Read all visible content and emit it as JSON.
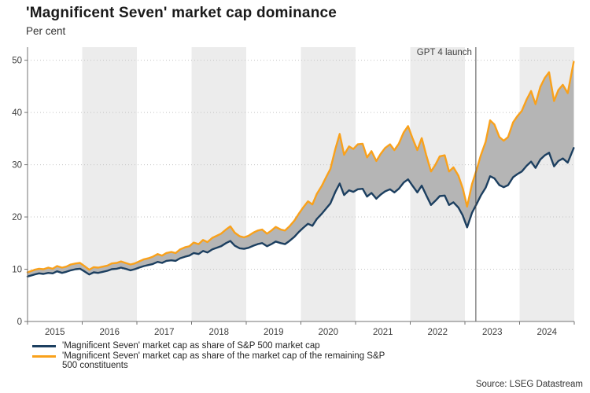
{
  "title": "'Magnificent Seven' market cap dominance",
  "subtitle": "Per cent",
  "source": "Source: LSEG Datastream",
  "legend": [
    {
      "label": "'Magnificent Seven' market cap as share of S&P 500 market cap",
      "color": "#1c3f60"
    },
    {
      "label": "'Magnificent Seven' market cap as share of the market cap of the remaining S&P 500 constituents",
      "color": "#f9a11b"
    }
  ],
  "chart_data": {
    "type": "line",
    "title": "'Magnificent Seven' market cap dominance",
    "ylabel": "Per cent",
    "xlabel": "",
    "xlim": [
      2015,
      2025
    ],
    "ylim": [
      0,
      52.5
    ],
    "yticks": [
      0,
      10,
      20,
      30,
      40,
      50
    ],
    "xtick_years": [
      2015,
      2016,
      2017,
      2018,
      2019,
      2020,
      2021,
      2022,
      2023,
      2024
    ],
    "shaded_year_bands": [
      2016,
      2018,
      2020,
      2022,
      2024
    ],
    "band_color": "#ececec",
    "grid_color": "#c2c2c2",
    "axis_color": "#737373",
    "annotation_line_x": 2023.2,
    "annotation_label": "GPT 4 launch",
    "fill_between": {
      "color": "#b5b5b5"
    },
    "legend_position": "bottom-left",
    "x": [
      2015.0,
      2015.13,
      2015.21,
      2015.29,
      2015.38,
      2015.46,
      2015.54,
      2015.63,
      2015.71,
      2015.79,
      2015.88,
      2015.96,
      2016.04,
      2016.13,
      2016.21,
      2016.29,
      2016.38,
      2016.46,
      2016.54,
      2016.63,
      2016.71,
      2016.79,
      2016.88,
      2016.96,
      2017.04,
      2017.13,
      2017.21,
      2017.29,
      2017.38,
      2017.46,
      2017.54,
      2017.63,
      2017.71,
      2017.79,
      2017.88,
      2017.96,
      2018.04,
      2018.13,
      2018.21,
      2018.29,
      2018.38,
      2018.46,
      2018.54,
      2018.63,
      2018.71,
      2018.79,
      2018.88,
      2018.96,
      2019.04,
      2019.13,
      2019.21,
      2019.29,
      2019.38,
      2019.46,
      2019.54,
      2019.63,
      2019.71,
      2019.79,
      2019.88,
      2019.96,
      2020.04,
      2020.13,
      2020.21,
      2020.29,
      2020.38,
      2020.46,
      2020.54,
      2020.63,
      2020.71,
      2020.79,
      2020.88,
      2020.96,
      2021.04,
      2021.13,
      2021.21,
      2021.29,
      2021.38,
      2021.46,
      2021.54,
      2021.63,
      2021.71,
      2021.79,
      2021.88,
      2021.96,
      2022.04,
      2022.13,
      2022.21,
      2022.29,
      2022.38,
      2022.46,
      2022.54,
      2022.63,
      2022.71,
      2022.79,
      2022.88,
      2022.96,
      2023.04,
      2023.13,
      2023.21,
      2023.29,
      2023.38,
      2023.46,
      2023.54,
      2023.63,
      2023.71,
      2023.79,
      2023.88,
      2023.96,
      2024.04,
      2024.13,
      2024.21,
      2024.29,
      2024.38,
      2024.46,
      2024.54,
      2024.63,
      2024.71,
      2024.79,
      2024.88,
      2024.99
    ],
    "series": [
      {
        "name": "'Magnificent Seven' market cap as share of S&P 500 market cap",
        "color": "#1c3f60",
        "values": [
          8.6,
          9.0,
          9.2,
          9.1,
          9.3,
          9.2,
          9.6,
          9.3,
          9.5,
          9.8,
          10.0,
          10.1,
          9.6,
          9.0,
          9.4,
          9.3,
          9.5,
          9.7,
          10.0,
          10.1,
          10.3,
          10.1,
          9.8,
          10.0,
          10.3,
          10.6,
          10.8,
          11.0,
          11.4,
          11.2,
          11.6,
          11.7,
          11.6,
          12.1,
          12.4,
          12.6,
          13.1,
          12.9,
          13.5,
          13.2,
          13.8,
          14.1,
          14.4,
          15.0,
          15.4,
          14.5,
          14.0,
          13.9,
          14.1,
          14.5,
          14.8,
          15.0,
          14.4,
          14.8,
          15.3,
          15.0,
          14.8,
          15.4,
          16.2,
          17.1,
          17.9,
          18.7,
          18.3,
          19.6,
          20.6,
          21.6,
          22.6,
          24.8,
          26.4,
          24.2,
          25.1,
          24.8,
          25.3,
          25.4,
          23.9,
          24.6,
          23.5,
          24.3,
          24.9,
          25.3,
          24.7,
          25.4,
          26.6,
          27.2,
          26.0,
          24.7,
          26.0,
          24.2,
          22.3,
          23.1,
          24.0,
          24.1,
          22.3,
          22.8,
          21.8,
          20.3,
          18.0,
          20.8,
          22.4,
          24.1,
          25.6,
          27.8,
          27.4,
          26.1,
          25.7,
          26.1,
          27.6,
          28.2,
          28.7,
          29.8,
          30.6,
          29.4,
          31.0,
          31.8,
          32.3,
          29.7,
          30.7,
          31.2,
          30.4,
          33.2
        ]
      },
      {
        "name": "'Magnificent Seven' market cap as share of the market cap of the remaining S&P 500 constituents",
        "color": "#f9a11b",
        "values": [
          9.4,
          9.9,
          10.1,
          10.0,
          10.3,
          10.1,
          10.6,
          10.3,
          10.5,
          10.9,
          11.1,
          11.2,
          10.6,
          9.9,
          10.4,
          10.3,
          10.5,
          10.7,
          11.1,
          11.2,
          11.5,
          11.2,
          10.9,
          11.1,
          11.5,
          11.9,
          12.1,
          12.4,
          12.9,
          12.6,
          13.1,
          13.3,
          13.1,
          13.8,
          14.2,
          14.4,
          15.1,
          14.8,
          15.6,
          15.2,
          16.0,
          16.4,
          16.8,
          17.6,
          18.2,
          17.0,
          16.3,
          16.1,
          16.4,
          17.0,
          17.4,
          17.6,
          16.8,
          17.4,
          18.1,
          17.6,
          17.4,
          18.2,
          19.3,
          20.6,
          21.8,
          23.0,
          22.4,
          24.4,
          25.9,
          27.6,
          29.2,
          33.0,
          35.9,
          31.9,
          33.5,
          33.0,
          33.9,
          34.0,
          31.4,
          32.6,
          30.7,
          32.1,
          33.2,
          33.9,
          32.8,
          34.0,
          36.2,
          37.4,
          35.1,
          32.8,
          35.1,
          31.9,
          28.7,
          30.0,
          31.6,
          31.8,
          28.7,
          29.5,
          27.9,
          25.5,
          22.0,
          26.3,
          28.9,
          31.8,
          34.4,
          38.5,
          37.7,
          35.3,
          34.6,
          35.3,
          38.1,
          39.3,
          40.3,
          42.5,
          44.1,
          41.6,
          44.9,
          46.6,
          47.7,
          42.2,
          44.3,
          45.3,
          43.7,
          49.7
        ]
      }
    ]
  }
}
